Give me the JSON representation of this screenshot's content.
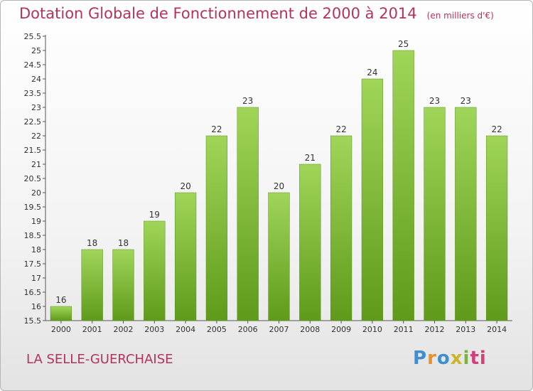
{
  "chart_data": {
    "type": "bar",
    "title": "Dotation Globale de Fonctionnement de 2000 à 2014",
    "subtitle": "(en milliers d'€)",
    "categories": [
      "2000",
      "2001",
      "2002",
      "2003",
      "2004",
      "2005",
      "2006",
      "2007",
      "2008",
      "2009",
      "2010",
      "2011",
      "2012",
      "2013",
      "2014"
    ],
    "values": [
      16,
      18,
      18,
      19,
      20,
      22,
      23,
      20,
      21,
      22,
      24,
      25,
      23,
      23,
      22
    ],
    "ylim": [
      15.5,
      25.5
    ],
    "yticks": [
      15.5,
      16,
      16.5,
      17,
      17.5,
      18,
      18.5,
      19,
      19.5,
      20,
      20.5,
      21,
      21.5,
      22,
      22.5,
      23,
      23.5,
      24,
      24.5,
      25,
      25.5
    ],
    "grid": false,
    "bar_color": "#7cbb2f"
  },
  "commune": "LA SELLE-GUERCHAISE",
  "logo": {
    "letters": [
      "P",
      "r",
      "o",
      "x",
      "i",
      "ti"
    ]
  }
}
